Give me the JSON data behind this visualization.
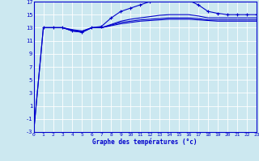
{
  "xlabel": "Graphe des températures (°c)",
  "background_color": "#cce8f0",
  "grid_color": "#ffffff",
  "line_color": "#0000cc",
  "x_min": 0,
  "x_max": 23,
  "y_min": -3,
  "y_max": 17,
  "yticks": [
    -3,
    -1,
    1,
    3,
    5,
    7,
    9,
    11,
    13,
    15,
    17
  ],
  "xticks": [
    0,
    1,
    2,
    3,
    4,
    5,
    6,
    7,
    8,
    9,
    10,
    11,
    12,
    13,
    14,
    15,
    16,
    17,
    18,
    19,
    20,
    21,
    22,
    23
  ],
  "series": [
    {
      "x": [
        0,
        1,
        2,
        3,
        4,
        5,
        6,
        7,
        8,
        9,
        10,
        11,
        12,
        13,
        14,
        15,
        16,
        17,
        18,
        19,
        20,
        21,
        22,
        23
      ],
      "y": [
        -3,
        13,
        13,
        13,
        12.5,
        12.3,
        13,
        13.2,
        14.5,
        15.5,
        16,
        16.5,
        17,
        17.3,
        17.5,
        17.4,
        17.2,
        16.5,
        15.5,
        15.2,
        15,
        15,
        15,
        15
      ],
      "marker": "+"
    },
    {
      "x": [
        0,
        1,
        2,
        3,
        4,
        5,
        6,
        7,
        8,
        9,
        10,
        11,
        12,
        13,
        14,
        15,
        16,
        17,
        18,
        19,
        20,
        21,
        22,
        23
      ],
      "y": [
        -3,
        13,
        13,
        13,
        12.5,
        12.3,
        13,
        13.0,
        13.5,
        14.0,
        14.3,
        14.5,
        14.7,
        14.9,
        15.0,
        15.0,
        15.0,
        14.8,
        14.5,
        14.5,
        14.5,
        14.5,
        14.5,
        14.5
      ],
      "marker": null
    },
    {
      "x": [
        1,
        2,
        3,
        4,
        5,
        6,
        7,
        8,
        9,
        10,
        11,
        12,
        13,
        14,
        15,
        16,
        17,
        18,
        19,
        20,
        21,
        22,
        23
      ],
      "y": [
        13,
        13,
        13,
        12.6,
        12.4,
        13,
        13.0,
        13.4,
        13.8,
        14.0,
        14.2,
        14.3,
        14.4,
        14.5,
        14.5,
        14.5,
        14.4,
        14.2,
        14.2,
        14.2,
        14.2,
        14.2,
        14.2
      ],
      "marker": null
    },
    {
      "x": [
        1,
        2,
        3,
        4,
        5,
        6,
        7,
        8,
        9,
        10,
        11,
        12,
        13,
        14,
        15,
        16,
        17,
        18,
        19,
        20,
        21,
        22,
        23
      ],
      "y": [
        13,
        13,
        13,
        12.7,
        12.5,
        13,
        13.0,
        13.3,
        13.6,
        13.8,
        14.0,
        14.1,
        14.2,
        14.3,
        14.3,
        14.3,
        14.2,
        14.1,
        14.0,
        14.0,
        14.0,
        14.0,
        14.0
      ],
      "marker": null
    }
  ]
}
